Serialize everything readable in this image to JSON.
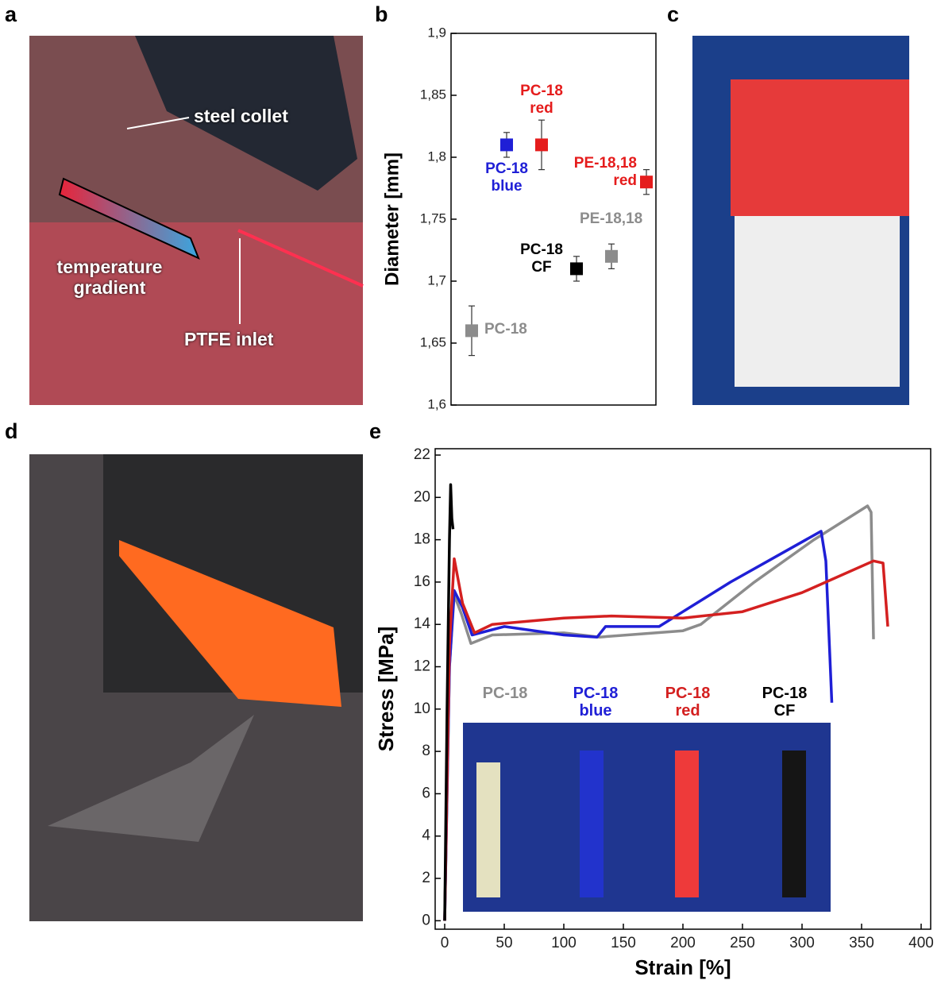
{
  "panel_letters": [
    "a",
    "b",
    "c",
    "d",
    "e"
  ],
  "photo_a": {
    "labels": [
      "steel collet",
      "temperature gradient",
      "PTFE inlet"
    ]
  },
  "chart_data": [
    {
      "type": "scatter",
      "y_label": "Diameter [mm]",
      "ylim": [
        1.6,
        1.9
      ],
      "yticks": [
        {
          "value": 1.6,
          "label": "1,6"
        },
        {
          "value": 1.65,
          "label": "1,65"
        },
        {
          "value": 1.7,
          "label": "1,7"
        },
        {
          "value": 1.75,
          "label": "1,75"
        },
        {
          "value": 1.8,
          "label": "1,8"
        },
        {
          "value": 1.85,
          "label": "1,85"
        },
        {
          "value": 1.9,
          "label": "1,9"
        }
      ],
      "series": [
        {
          "name": "PC-18",
          "color": "#8c8c8c",
          "values": [
            1.66
          ],
          "errors": [
            0.02
          ]
        },
        {
          "name": "PC-18 blue",
          "color": "#1f1fd6",
          "values": [
            1.81
          ],
          "errors": [
            0.01
          ]
        },
        {
          "name": "PC-18 red",
          "color": "#e51c1c",
          "values": [
            1.81
          ],
          "errors": [
            0.02
          ]
        },
        {
          "name": "PC-18 CF",
          "color": "#000000",
          "values": [
            1.71
          ],
          "errors": [
            0.01
          ]
        },
        {
          "name": "PE-18,18",
          "color": "#8c8c8c",
          "values": [
            1.72
          ],
          "errors": [
            0.01
          ]
        },
        {
          "name": "PE-18,18 red",
          "color": "#e51c1c",
          "values": [
            1.78
          ],
          "errors": [
            0.01
          ]
        }
      ]
    },
    {
      "type": "line",
      "x_label": "Strain [%]",
      "y_label": "Stress [MPa]",
      "xlim": [
        -8,
        408
      ],
      "ylim": [
        -0.4,
        22.3
      ],
      "xticks": [
        0,
        50,
        100,
        150,
        200,
        250,
        300,
        350,
        400
      ],
      "yticks": [
        0,
        2,
        4,
        6,
        8,
        10,
        12,
        14,
        16,
        18,
        20,
        22
      ],
      "series": [
        {
          "name": "PC-18",
          "color": "#8c8c8c",
          "x": [
            0,
            4,
            8,
            14,
            22,
            40,
            100,
            130,
            200,
            215,
            260,
            310,
            355,
            358,
            360
          ],
          "values": [
            0,
            12,
            15.4,
            14.5,
            13.1,
            13.5,
            13.6,
            13.4,
            13.7,
            14,
            16,
            18,
            19.6,
            19.3,
            13.3
          ]
        },
        {
          "name": "PC-18 blue",
          "color": "#1f1fd6",
          "x": [
            0,
            4,
            8,
            15,
            23,
            50,
            100,
            128,
            135,
            180,
            200,
            240,
            316,
            320,
            325
          ],
          "values": [
            0,
            12,
            15.6,
            14.8,
            13.5,
            13.9,
            13.5,
            13.4,
            13.9,
            13.9,
            14.6,
            16,
            18.4,
            17,
            10.3
          ]
        },
        {
          "name": "PC-18 red",
          "color": "#d42020",
          "x": [
            0,
            4,
            8,
            15,
            25,
            40,
            100,
            140,
            200,
            250,
            300,
            360,
            368,
            372
          ],
          "values": [
            0,
            13,
            17.1,
            15,
            13.6,
            14,
            14.3,
            14.4,
            14.3,
            14.6,
            15.5,
            17,
            16.9,
            13.9
          ]
        },
        {
          "name": "PC-18 CF",
          "color": "#000000",
          "x": [
            0,
            2,
            4,
            5,
            6,
            7
          ],
          "values": [
            0,
            10,
            18,
            20.6,
            19,
            18.5
          ]
        }
      ]
    }
  ]
}
